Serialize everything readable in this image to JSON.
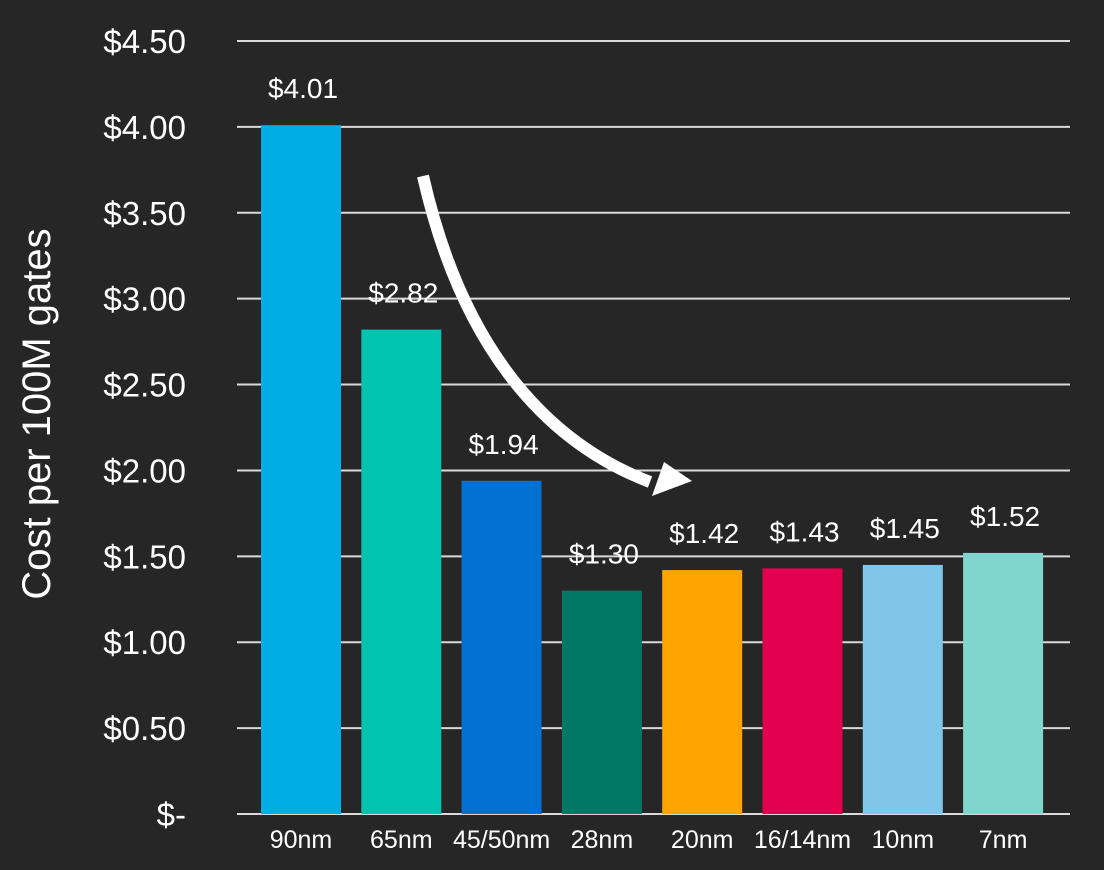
{
  "chart_data": {
    "type": "bar",
    "title": "",
    "xlabel": "",
    "ylabel": "Cost per 100M gates",
    "ylim": [
      0,
      4.5
    ],
    "yticks": [
      {
        "value": 0,
        "label": "$-"
      },
      {
        "value": 0.5,
        "label": "$0.50"
      },
      {
        "value": 1.0,
        "label": "$1.00"
      },
      {
        "value": 1.5,
        "label": "$1.50"
      },
      {
        "value": 2.0,
        "label": "$2.00"
      },
      {
        "value": 2.5,
        "label": "$2.50"
      },
      {
        "value": 3.0,
        "label": "$3.00"
      },
      {
        "value": 3.5,
        "label": "$3.50"
      },
      {
        "value": 4.0,
        "label": "$4.00"
      },
      {
        "value": 4.5,
        "label": "$4.50"
      }
    ],
    "categories": [
      "90nm",
      "65nm",
      "45/50nm",
      "28nm",
      "20nm",
      "16/14nm",
      "10nm",
      "7nm"
    ],
    "values": [
      4.01,
      2.82,
      1.94,
      1.3,
      1.42,
      1.43,
      1.45,
      1.52
    ],
    "data_labels": [
      "$4.01",
      "$2.82",
      "$1.94",
      "$1.30",
      "$1.42",
      "$1.43",
      "$1.45",
      "$1.52"
    ],
    "colors": [
      "#00aee6",
      "#00c4b0",
      "#0071d2",
      "#007866",
      "#ffa400",
      "#e3004f",
      "#80c6ea",
      "#80d6cc"
    ],
    "grid": true,
    "legend": "none",
    "annotation": "curved-down-arrow"
  }
}
